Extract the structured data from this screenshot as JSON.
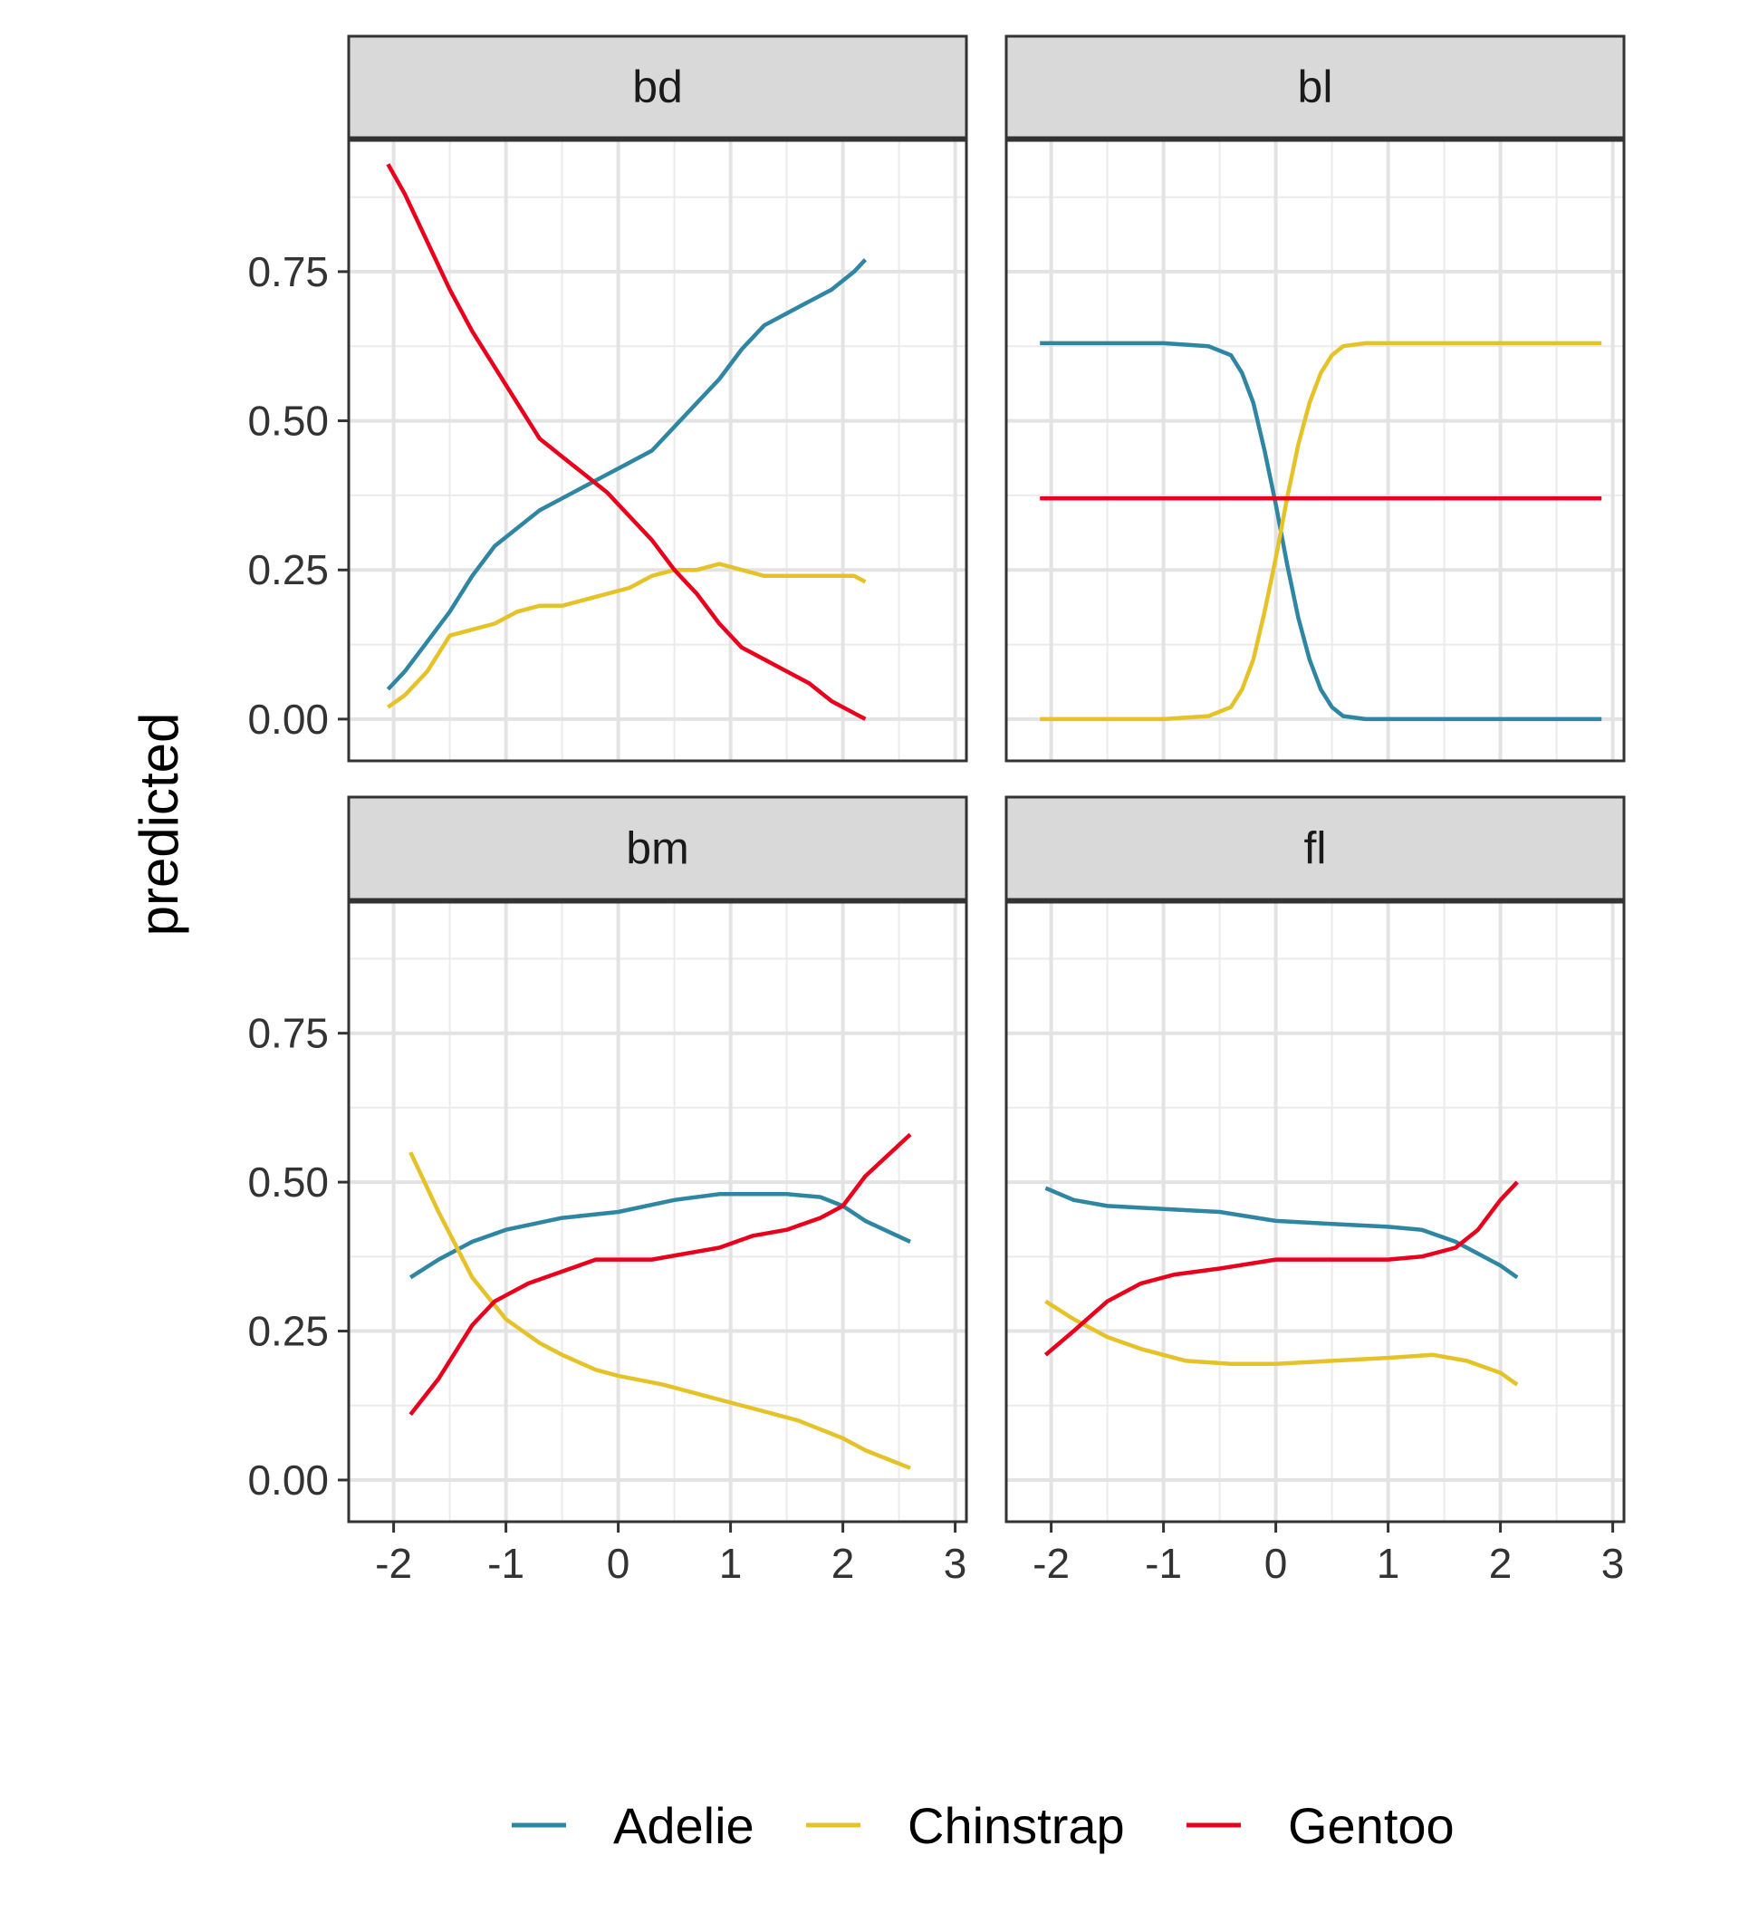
{
  "chart_data": {
    "type": "line",
    "facets": [
      "bd",
      "bl",
      "bm",
      "fl"
    ],
    "ylabel": "predicted",
    "xlabel": "",
    "xlim": [
      -2.4,
      3.1
    ],
    "ylim": [
      -0.07,
      0.97
    ],
    "x_ticks": [
      -2,
      -1,
      0,
      1,
      2,
      3
    ],
    "y_ticks": [
      0.0,
      0.25,
      0.5,
      0.75
    ],
    "x_tick_labels": [
      "-2",
      "-1",
      "0",
      "1",
      "2",
      "3"
    ],
    "y_tick_labels": [
      "0.00",
      "0.25",
      "0.50",
      "0.75"
    ],
    "grid": true,
    "legend_position": "bottom",
    "colors": {
      "Adelie": "#2E86A3",
      "Chinstrap": "#E6C229",
      "Gentoo": "#E8001C"
    },
    "panels": [
      {
        "facet": "bd",
        "series": [
          {
            "name": "Adelie",
            "points": [
              [
                -2.05,
                0.05
              ],
              [
                -1.9,
                0.08
              ],
              [
                -1.7,
                0.13
              ],
              [
                -1.5,
                0.18
              ],
              [
                -1.3,
                0.24
              ],
              [
                -1.1,
                0.29
              ],
              [
                -0.9,
                0.32
              ],
              [
                -0.7,
                0.35
              ],
              [
                -0.5,
                0.37
              ],
              [
                -0.3,
                0.39
              ],
              [
                -0.1,
                0.41
              ],
              [
                0.1,
                0.43
              ],
              [
                0.3,
                0.45
              ],
              [
                0.5,
                0.49
              ],
              [
                0.7,
                0.53
              ],
              [
                0.9,
                0.57
              ],
              [
                1.1,
                0.62
              ],
              [
                1.3,
                0.66
              ],
              [
                1.5,
                0.68
              ],
              [
                1.7,
                0.7
              ],
              [
                1.9,
                0.72
              ],
              [
                2.1,
                0.75
              ],
              [
                2.2,
                0.77
              ]
            ]
          },
          {
            "name": "Chinstrap",
            "points": [
              [
                -2.05,
                0.02
              ],
              [
                -1.9,
                0.04
              ],
              [
                -1.7,
                0.08
              ],
              [
                -1.5,
                0.14
              ],
              [
                -1.3,
                0.15
              ],
              [
                -1.1,
                0.16
              ],
              [
                -0.9,
                0.18
              ],
              [
                -0.7,
                0.19
              ],
              [
                -0.5,
                0.19
              ],
              [
                -0.3,
                0.2
              ],
              [
                -0.1,
                0.21
              ],
              [
                0.1,
                0.22
              ],
              [
                0.3,
                0.24
              ],
              [
                0.5,
                0.25
              ],
              [
                0.7,
                0.25
              ],
              [
                0.9,
                0.26
              ],
              [
                1.1,
                0.25
              ],
              [
                1.3,
                0.24
              ],
              [
                1.5,
                0.24
              ],
              [
                1.7,
                0.24
              ],
              [
                1.9,
                0.24
              ],
              [
                2.1,
                0.24
              ],
              [
                2.2,
                0.23
              ]
            ]
          },
          {
            "name": "Gentoo",
            "points": [
              [
                -2.05,
                0.93
              ],
              [
                -1.9,
                0.88
              ],
              [
                -1.7,
                0.8
              ],
              [
                -1.5,
                0.72
              ],
              [
                -1.3,
                0.65
              ],
              [
                -1.1,
                0.59
              ],
              [
                -0.9,
                0.53
              ],
              [
                -0.7,
                0.47
              ],
              [
                -0.5,
                0.44
              ],
              [
                -0.3,
                0.41
              ],
              [
                -0.1,
                0.38
              ],
              [
                0.1,
                0.34
              ],
              [
                0.3,
                0.3
              ],
              [
                0.5,
                0.25
              ],
              [
                0.7,
                0.21
              ],
              [
                0.9,
                0.16
              ],
              [
                1.1,
                0.12
              ],
              [
                1.3,
                0.1
              ],
              [
                1.5,
                0.08
              ],
              [
                1.7,
                0.06
              ],
              [
                1.9,
                0.03
              ],
              [
                2.1,
                0.01
              ],
              [
                2.2,
                0.0
              ]
            ]
          }
        ]
      },
      {
        "facet": "bl",
        "series": [
          {
            "name": "Adelie",
            "points": [
              [
                -2.1,
                0.63
              ],
              [
                -1.5,
                0.63
              ],
              [
                -1.0,
                0.63
              ],
              [
                -0.6,
                0.625
              ],
              [
                -0.4,
                0.61
              ],
              [
                -0.3,
                0.58
              ],
              [
                -0.2,
                0.53
              ],
              [
                -0.1,
                0.45
              ],
              [
                0.0,
                0.36
              ],
              [
                0.1,
                0.26
              ],
              [
                0.2,
                0.17
              ],
              [
                0.3,
                0.1
              ],
              [
                0.4,
                0.05
              ],
              [
                0.5,
                0.02
              ],
              [
                0.6,
                0.005
              ],
              [
                0.8,
                0.0
              ],
              [
                1.5,
                0.0
              ],
              [
                2.9,
                0.0
              ]
            ]
          },
          {
            "name": "Chinstrap",
            "points": [
              [
                -2.1,
                0.0
              ],
              [
                -1.5,
                0.0
              ],
              [
                -1.0,
                0.0
              ],
              [
                -0.6,
                0.005
              ],
              [
                -0.4,
                0.02
              ],
              [
                -0.3,
                0.05
              ],
              [
                -0.2,
                0.1
              ],
              [
                -0.1,
                0.18
              ],
              [
                0.0,
                0.27
              ],
              [
                0.1,
                0.37
              ],
              [
                0.2,
                0.46
              ],
              [
                0.3,
                0.53
              ],
              [
                0.4,
                0.58
              ],
              [
                0.5,
                0.61
              ],
              [
                0.6,
                0.625
              ],
              [
                0.8,
                0.63
              ],
              [
                1.5,
                0.63
              ],
              [
                2.9,
                0.63
              ]
            ]
          },
          {
            "name": "Gentoo",
            "points": [
              [
                -2.1,
                0.37
              ],
              [
                -1.5,
                0.37
              ],
              [
                0.0,
                0.37
              ],
              [
                1.5,
                0.37
              ],
              [
                2.9,
                0.37
              ]
            ]
          }
        ]
      },
      {
        "facet": "bm",
        "series": [
          {
            "name": "Adelie",
            "points": [
              [
                -1.85,
                0.34
              ],
              [
                -1.6,
                0.37
              ],
              [
                -1.3,
                0.4
              ],
              [
                -1.0,
                0.42
              ],
              [
                -0.5,
                0.44
              ],
              [
                0.0,
                0.45
              ],
              [
                0.5,
                0.47
              ],
              [
                0.9,
                0.48
              ],
              [
                1.2,
                0.48
              ],
              [
                1.5,
                0.48
              ],
              [
                1.8,
                0.475
              ],
              [
                2.0,
                0.46
              ],
              [
                2.2,
                0.435
              ],
              [
                2.6,
                0.4
              ]
            ]
          },
          {
            "name": "Chinstrap",
            "points": [
              [
                -1.85,
                0.55
              ],
              [
                -1.6,
                0.45
              ],
              [
                -1.3,
                0.34
              ],
              [
                -1.0,
                0.27
              ],
              [
                -0.7,
                0.23
              ],
              [
                -0.5,
                0.21
              ],
              [
                -0.2,
                0.185
              ],
              [
                0.0,
                0.175
              ],
              [
                0.4,
                0.16
              ],
              [
                0.8,
                0.14
              ],
              [
                1.2,
                0.12
              ],
              [
                1.6,
                0.1
              ],
              [
                2.0,
                0.07
              ],
              [
                2.2,
                0.05
              ],
              [
                2.6,
                0.02
              ]
            ]
          },
          {
            "name": "Gentoo",
            "points": [
              [
                -1.85,
                0.11
              ],
              [
                -1.6,
                0.17
              ],
              [
                -1.3,
                0.26
              ],
              [
                -1.1,
                0.3
              ],
              [
                -0.8,
                0.33
              ],
              [
                -0.5,
                0.35
              ],
              [
                -0.2,
                0.37
              ],
              [
                0.0,
                0.37
              ],
              [
                0.3,
                0.37
              ],
              [
                0.6,
                0.38
              ],
              [
                0.9,
                0.39
              ],
              [
                1.2,
                0.41
              ],
              [
                1.5,
                0.42
              ],
              [
                1.8,
                0.44
              ],
              [
                2.0,
                0.46
              ],
              [
                2.2,
                0.51
              ],
              [
                2.6,
                0.58
              ]
            ]
          }
        ]
      },
      {
        "facet": "fl",
        "series": [
          {
            "name": "Adelie",
            "points": [
              [
                -2.05,
                0.49
              ],
              [
                -1.8,
                0.47
              ],
              [
                -1.5,
                0.46
              ],
              [
                -1.0,
                0.455
              ],
              [
                -0.5,
                0.45
              ],
              [
                0.0,
                0.435
              ],
              [
                0.5,
                0.43
              ],
              [
                1.0,
                0.425
              ],
              [
                1.3,
                0.42
              ],
              [
                1.6,
                0.4
              ],
              [
                1.8,
                0.38
              ],
              [
                2.0,
                0.36
              ],
              [
                2.15,
                0.34
              ]
            ]
          },
          {
            "name": "Chinstrap",
            "points": [
              [
                -2.05,
                0.3
              ],
              [
                -1.8,
                0.27
              ],
              [
                -1.5,
                0.24
              ],
              [
                -1.2,
                0.22
              ],
              [
                -0.8,
                0.2
              ],
              [
                -0.4,
                0.195
              ],
              [
                0.0,
                0.195
              ],
              [
                0.5,
                0.2
              ],
              [
                1.0,
                0.205
              ],
              [
                1.4,
                0.21
              ],
              [
                1.7,
                0.2
              ],
              [
                2.0,
                0.18
              ],
              [
                2.15,
                0.16
              ]
            ]
          },
          {
            "name": "Gentoo",
            "points": [
              [
                -2.05,
                0.21
              ],
              [
                -1.8,
                0.25
              ],
              [
                -1.5,
                0.3
              ],
              [
                -1.2,
                0.33
              ],
              [
                -0.9,
                0.345
              ],
              [
                -0.5,
                0.355
              ],
              [
                0.0,
                0.37
              ],
              [
                0.5,
                0.37
              ],
              [
                1.0,
                0.37
              ],
              [
                1.3,
                0.375
              ],
              [
                1.6,
                0.39
              ],
              [
                1.8,
                0.42
              ],
              [
                2.0,
                0.47
              ],
              [
                2.15,
                0.5
              ]
            ]
          }
        ]
      }
    ],
    "legend": [
      "Adelie",
      "Chinstrap",
      "Gentoo"
    ]
  }
}
